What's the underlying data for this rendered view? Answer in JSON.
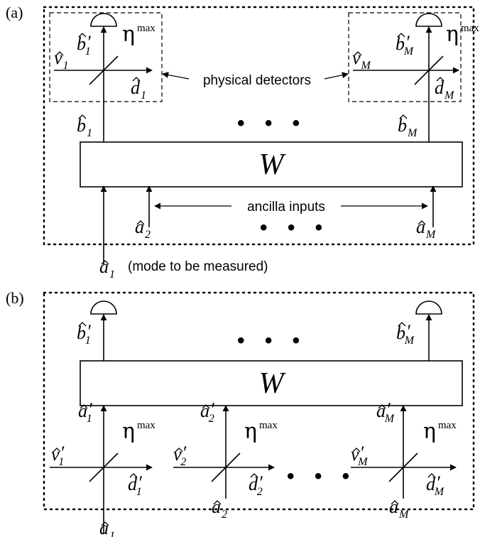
{
  "panels": {
    "a": {
      "label": "(a)",
      "box_label": "W",
      "detector_note": "physical detectors",
      "ancilla_note": "ancilla inputs",
      "measured_note": "(mode to be measured)",
      "ellipsis_top": "• • •",
      "ellipsis_bottom": "• • •",
      "labels": {
        "v1": {
          "base": "v",
          "sub": "1",
          "prime": ""
        },
        "b1p": {
          "base": "b",
          "sub": "1",
          "prime": "′"
        },
        "eta1": {
          "base": "η",
          "sup": "max"
        },
        "d1": {
          "base": "d",
          "sub": "1",
          "prime": ""
        },
        "b1": {
          "base": "b",
          "sub": "1",
          "prime": ""
        },
        "vM": {
          "base": "v",
          "sub": "M",
          "prime": ""
        },
        "bMp": {
          "base": "b",
          "sub": "M",
          "prime": "′"
        },
        "etaM": {
          "base": "η",
          "sup": "max"
        },
        "dM": {
          "base": "d",
          "sub": "M",
          "prime": ""
        },
        "bM": {
          "base": "b",
          "sub": "M",
          "prime": ""
        },
        "a2": {
          "base": "a",
          "sub": "2",
          "prime": ""
        },
        "aM": {
          "base": "a",
          "sub": "M",
          "prime": ""
        },
        "a1": {
          "base": "a",
          "sub": "1",
          "prime": ""
        }
      }
    },
    "b": {
      "label": "(b)",
      "box_label": "W",
      "ellipsis_top": "• • •",
      "ellipsis_bottom": "• • •",
      "labels": {
        "b1p": {
          "base": "b",
          "sub": "1",
          "prime": "′"
        },
        "bMp": {
          "base": "b",
          "sub": "M",
          "prime": "′"
        },
        "a1p": {
          "base": "a",
          "sub": "1",
          "prime": "′"
        },
        "a2p": {
          "base": "a",
          "sub": "2",
          "prime": "′"
        },
        "aMp": {
          "base": "a",
          "sub": "M",
          "prime": "′"
        },
        "eta1": {
          "base": "η",
          "sup": "max"
        },
        "eta2": {
          "base": "η",
          "sup": "max"
        },
        "etaM": {
          "base": "η",
          "sup": "max"
        },
        "v1p": {
          "base": "v",
          "sub": "1",
          "prime": "′"
        },
        "v2p": {
          "base": "v",
          "sub": "2",
          "prime": "′"
        },
        "vMp": {
          "base": "v",
          "sub": "M",
          "prime": "′"
        },
        "d1p": {
          "base": "d",
          "sub": "1",
          "prime": "′"
        },
        "d2p": {
          "base": "d",
          "sub": "2",
          "prime": "′"
        },
        "dMp": {
          "base": "d",
          "sub": "M",
          "prime": "′"
        },
        "a2": {
          "base": "a",
          "sub": "2",
          "prime": ""
        },
        "aM": {
          "base": "a",
          "sub": "M",
          "prime": ""
        },
        "a1": {
          "base": "a",
          "sub": "1",
          "prime": ""
        }
      }
    }
  }
}
